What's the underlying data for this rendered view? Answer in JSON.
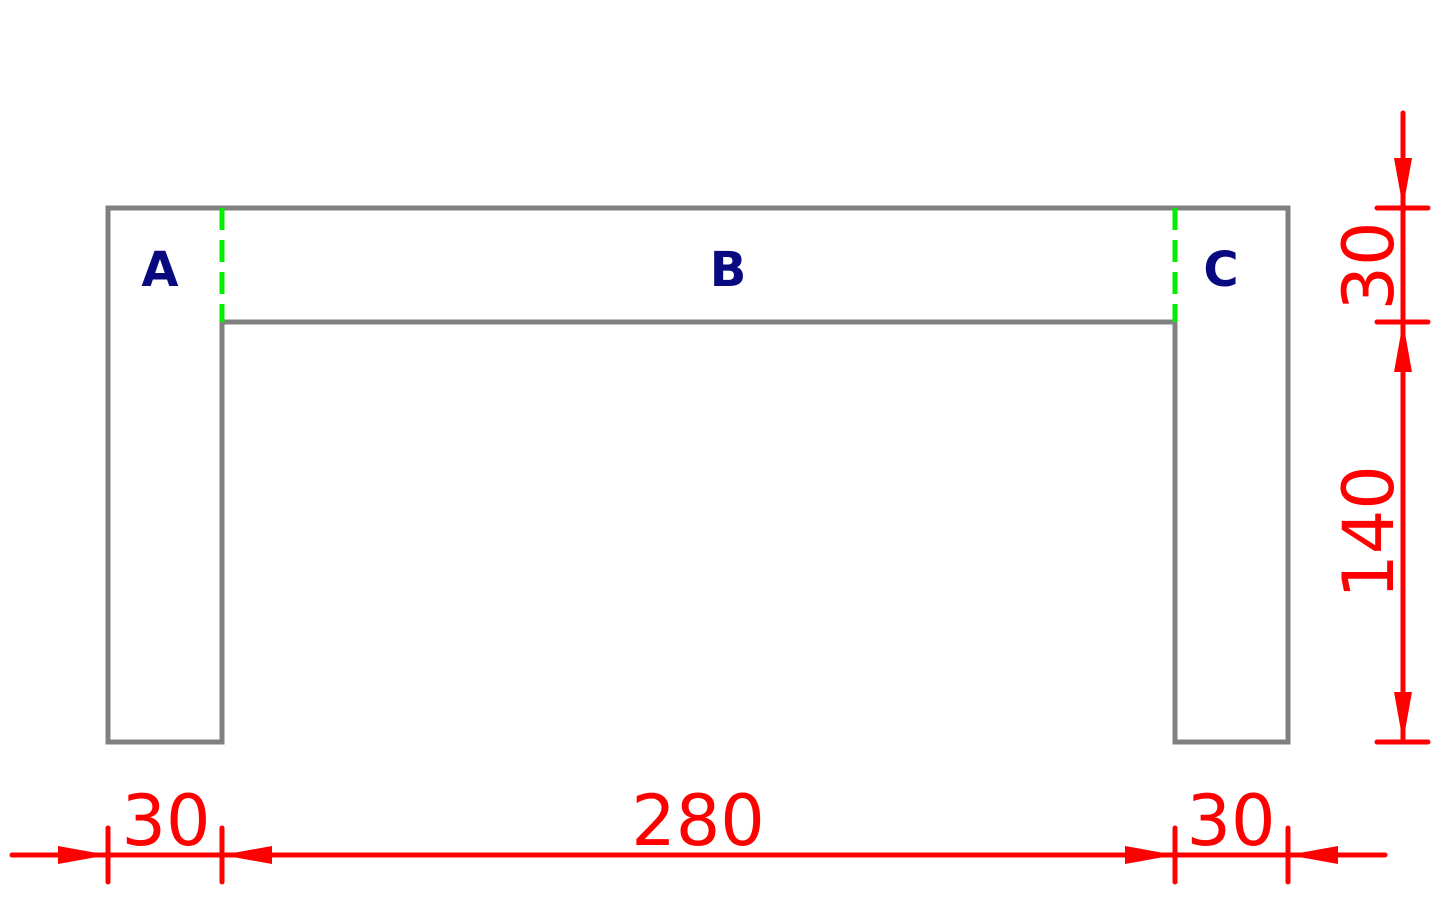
{
  "parts": {
    "left": "A",
    "middle": "B",
    "right": "C"
  },
  "dimensions": {
    "bottom_left": "30",
    "bottom_middle": "280",
    "bottom_right": "30",
    "right_top": "30",
    "right_bottom": "140"
  },
  "colors": {
    "outline": "#808080",
    "joint_lines": "#00ee00",
    "dimensions": "#ff0000",
    "labels": "#0a0a80"
  }
}
